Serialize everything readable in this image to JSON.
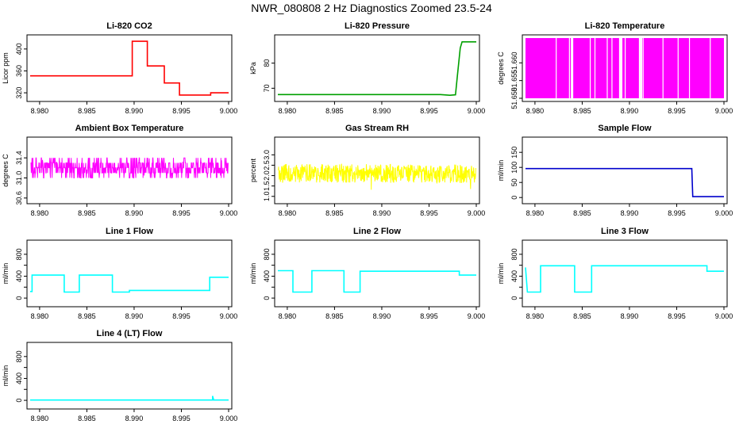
{
  "figure": {
    "title": "NWR_080808  2 Hz Diagnostics Zoomed 23.5-24"
  },
  "chart_data": [
    {
      "type": "line",
      "title": "Li-820 CO2",
      "xlabel": "",
      "ylabel": "Licor ppm",
      "xlim": [
        8.979,
        9.0
      ],
      "ylim": [
        310,
        420
      ],
      "xticks": [
        8.98,
        8.985,
        8.99,
        8.995,
        9.0
      ],
      "xtick_labels": [
        "8.980",
        "8.985",
        "8.990",
        "8.995",
        "9.000"
      ],
      "yticks": [
        320,
        360,
        400
      ],
      "ytick_labels": [
        "320",
        "360",
        "400"
      ],
      "color": "#ff0000",
      "series": [
        {
          "x": [
            8.979,
            8.9898,
            8.9898,
            8.9914,
            8.9914,
            8.9932,
            8.9932,
            8.9948,
            8.9948,
            8.9981,
            8.9981,
            9.0
          ],
          "y": [
            351,
            351,
            414,
            414,
            369,
            369,
            338,
            338,
            316,
            316,
            320,
            320
          ]
        }
      ]
    },
    {
      "type": "line",
      "title": "Li-820 Pressure",
      "xlabel": "",
      "ylabel": "kPa",
      "xlim": [
        8.979,
        9.0
      ],
      "ylim": [
        66,
        90
      ],
      "xticks": [
        8.98,
        8.985,
        8.99,
        8.995,
        9.0
      ],
      "xtick_labels": [
        "8.980",
        "8.985",
        "8.990",
        "8.995",
        "9.000"
      ],
      "yticks": [
        70,
        80
      ],
      "ytick_labels": [
        "70",
        "80"
      ],
      "color": "#00a000",
      "series": [
        {
          "x": [
            8.979,
            8.9962,
            8.9972,
            8.9978,
            8.998,
            8.9983,
            8.9985,
            9.0
          ],
          "y": [
            67.5,
            67.5,
            67.2,
            67.4,
            75,
            86,
            88.5,
            88.5
          ]
        }
      ]
    },
    {
      "type": "bar",
      "title": "Li-820 Temperature",
      "xlabel": "",
      "ylabel": "degrees C",
      "xlim": [
        8.979,
        9.0
      ],
      "ylim": [
        51.65,
        51.667
      ],
      "xticks": [
        8.98,
        8.985,
        8.99,
        8.995,
        9.0
      ],
      "xtick_labels": [
        "8.980",
        "8.985",
        "8.990",
        "8.995",
        "9.000"
      ],
      "yticks": [
        51.65,
        51.655,
        51.66
      ],
      "ytick_labels": [
        "51.650",
        "51.655",
        "51.660"
      ],
      "color": "#ff00ff",
      "baseline": 51.65,
      "top_value": 51.667,
      "gaps_x": [
        8.9822,
        8.9836,
        8.9858,
        8.9863,
        8.9876,
        8.9881,
        8.9889,
        8.9895,
        8.991,
        8.9914,
        8.9935,
        8.9951,
        8.9963,
        8.9985
      ],
      "gap_length_x": [
        8.9838,
        8.989,
        8.9911
      ]
    },
    {
      "type": "line",
      "title": "Ambient Box Temperature",
      "xlabel": "",
      "ylabel": "degrees C",
      "xlim": [
        8.979,
        9.0
      ],
      "ylim": [
        30.55,
        31.75
      ],
      "xticks": [
        8.98,
        8.985,
        8.99,
        8.995,
        9.0
      ],
      "xtick_labels": [
        "8.980",
        "8.985",
        "8.990",
        "8.995",
        "9.000"
      ],
      "yticks": [
        30.6,
        31.0,
        31.4
      ],
      "ytick_labels": [
        "30.6",
        "31.0",
        "31.4"
      ],
      "color": "#ff00ff",
      "levels": [
        31.0,
        31.1,
        31.2,
        31.3,
        31.4
      ],
      "noise_center": 31.2,
      "noise_halfwidth": 0.2
    },
    {
      "type": "line",
      "title": "Gas Stream RH",
      "xlabel": "",
      "ylabel": "percent",
      "xlim": [
        8.979,
        9.0
      ],
      "ylim": [
        0.8,
        3.7
      ],
      "xticks": [
        8.98,
        8.985,
        8.99,
        8.995,
        9.0
      ],
      "xtick_labels": [
        "8.980",
        "8.985",
        "8.990",
        "8.995",
        "9.000"
      ],
      "yticks": [
        1.0,
        1.5,
        2.0,
        2.5,
        3.0
      ],
      "ytick_labels": [
        "1.0",
        "1.5",
        "2.0",
        "2.5",
        "3.0"
      ],
      "color": "#ffff00",
      "noise_center": 2.1,
      "noise_halfwidth": 0.45
    },
    {
      "type": "line",
      "title": "Sample Flow",
      "xlabel": "",
      "ylabel": "ml/min",
      "xlim": [
        8.979,
        9.0
      ],
      "ylim": [
        -10,
        190
      ],
      "xticks": [
        8.98,
        8.985,
        8.99,
        8.995,
        9.0
      ],
      "xtick_labels": [
        "8.980",
        "8.985",
        "8.990",
        "8.995",
        "9.000"
      ],
      "yticks": [
        0,
        50,
        100,
        150
      ],
      "ytick_labels": [
        "0",
        "50",
        "100",
        "150"
      ],
      "color": "#0000cc",
      "series": [
        {
          "x": [
            8.979,
            8.9966,
            8.9967,
            9.0
          ],
          "y": [
            96,
            96,
            3,
            3
          ]
        }
      ]
    },
    {
      "type": "line",
      "title": "Line 1 Flow",
      "xlabel": "",
      "ylabel": "ml/min",
      "xlim": [
        8.979,
        9.0
      ],
      "ylim": [
        -100,
        1000
      ],
      "xticks": [
        8.98,
        8.985,
        8.99,
        8.995,
        9.0
      ],
      "xtick_labels": [
        "8.980",
        "8.985",
        "8.990",
        "8.995",
        "9.000"
      ],
      "yticks": [
        0,
        200,
        400,
        600,
        800
      ],
      "ytick_labels": [
        "0",
        "400",
        "800"
      ],
      "ytick_label_values": [
        0,
        400,
        800
      ],
      "color": "#00ffff",
      "series": [
        {
          "x": [
            8.979,
            8.9792,
            8.9792,
            8.9826,
            8.9826,
            8.9842,
            8.9842,
            8.9877,
            8.9877,
            8.9895,
            8.9895,
            8.998,
            8.998,
            9.0
          ],
          "y": [
            120,
            120,
            420,
            420,
            110,
            110,
            420,
            420,
            110,
            110,
            140,
            140,
            380,
            380
          ]
        }
      ]
    },
    {
      "type": "line",
      "title": "Line 2 Flow",
      "xlabel": "",
      "ylabel": "ml/min",
      "xlim": [
        8.979,
        9.0
      ],
      "ylim": [
        -100,
        1000
      ],
      "xticks": [
        8.98,
        8.985,
        8.99,
        8.995,
        9.0
      ],
      "xtick_labels": [
        "8.980",
        "8.985",
        "8.990",
        "8.995",
        "9.000"
      ],
      "yticks": [
        0,
        200,
        400,
        600,
        800
      ],
      "ytick_labels": [
        "0",
        "400",
        "800"
      ],
      "ytick_label_values": [
        0,
        400,
        800
      ],
      "color": "#00ffff",
      "series": [
        {
          "x": [
            8.979,
            8.9806,
            8.9806,
            8.9826,
            8.9826,
            8.986,
            8.986,
            8.9877,
            8.9877,
            8.9982,
            8.9982,
            9.0
          ],
          "y": [
            500,
            500,
            110,
            110,
            500,
            500,
            110,
            110,
            490,
            490,
            420,
            420
          ]
        }
      ]
    },
    {
      "type": "line",
      "title": "Line 3 Flow",
      "xlabel": "",
      "ylabel": "ml/min",
      "xlim": [
        8.979,
        9.0
      ],
      "ylim": [
        -100,
        1000
      ],
      "xticks": [
        8.98,
        8.985,
        8.99,
        8.995,
        9.0
      ],
      "xtick_labels": [
        "8.980",
        "8.985",
        "8.990",
        "8.995",
        "9.000"
      ],
      "yticks": [
        0,
        200,
        400,
        600,
        800
      ],
      "ytick_labels": [
        "0",
        "400",
        "800"
      ],
      "ytick_label_values": [
        0,
        400,
        800
      ],
      "color": "#00ffff",
      "series": [
        {
          "x": [
            8.979,
            8.9792,
            8.9792,
            8.9806,
            8.9806,
            8.9842,
            8.9842,
            8.986,
            8.986,
            8.9982,
            8.9982,
            9.0
          ],
          "y": [
            560,
            110,
            110,
            110,
            590,
            590,
            110,
            110,
            590,
            590,
            490,
            490
          ]
        }
      ]
    },
    {
      "type": "line",
      "title": "Line 4 (LT) Flow",
      "xlabel": "",
      "ylabel": "ml/min",
      "xlim": [
        8.979,
        9.0
      ],
      "ylim": [
        -100,
        1000
      ],
      "xticks": [
        8.98,
        8.985,
        8.99,
        8.995,
        9.0
      ],
      "xtick_labels": [
        "8.980",
        "8.985",
        "8.990",
        "8.995",
        "9.000"
      ],
      "yticks": [
        0,
        200,
        400,
        600,
        800
      ],
      "ytick_labels": [
        "0",
        "400",
        "800"
      ],
      "ytick_label_values": [
        0,
        400,
        800
      ],
      "color": "#00ffff",
      "series": [
        {
          "x": [
            8.979,
            8.9983,
            8.9983,
            8.9984,
            8.9984,
            9.0
          ],
          "y": [
            5,
            5,
            80,
            20,
            5,
            5
          ]
        }
      ]
    }
  ]
}
